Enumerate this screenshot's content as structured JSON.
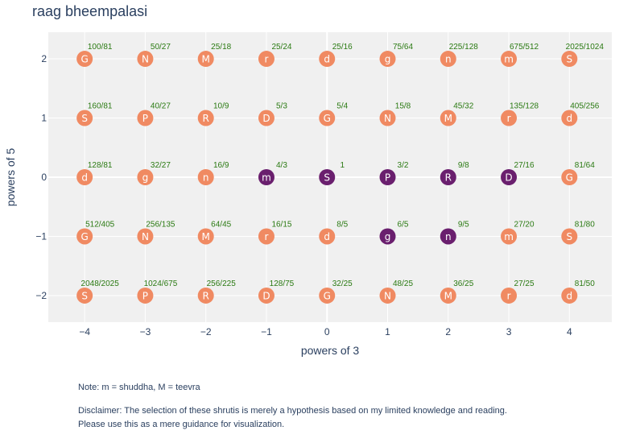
{
  "chart_data": {
    "type": "scatter",
    "title": "raag bheempalasi",
    "xlabel": "powers of 3",
    "ylabel": "powers of 5",
    "xlim": [
      -4.6,
      4.7
    ],
    "ylim": [
      -2.45,
      2.45
    ],
    "xticks": [
      -4,
      -3,
      -2,
      -1,
      0,
      1,
      2,
      3,
      4
    ],
    "xtick_labels": [
      "−4",
      "−3",
      "−2",
      "−1",
      "0",
      "1",
      "2",
      "3",
      "4"
    ],
    "yticks": [
      -2,
      -1,
      0,
      1,
      2
    ],
    "ytick_labels": [
      "−2",
      "−1",
      "0",
      "1",
      "2"
    ],
    "colors": {
      "normal": "#f08a62",
      "selected": "#6a1f6e",
      "ratio_text": "#2a7a12",
      "plot_bg": "#f0f0f0",
      "axis_text": "#2a3f5f"
    },
    "points": [
      {
        "x": -4,
        "y": 2,
        "swara": "G",
        "ratio": "100/81",
        "selected": false
      },
      {
        "x": -3,
        "y": 2,
        "swara": "N",
        "ratio": "50/27",
        "selected": false
      },
      {
        "x": -2,
        "y": 2,
        "swara": "M",
        "ratio": "25/18",
        "selected": false
      },
      {
        "x": -1,
        "y": 2,
        "swara": "r",
        "ratio": "25/24",
        "selected": false
      },
      {
        "x": 0,
        "y": 2,
        "swara": "d",
        "ratio": "25/16",
        "selected": false
      },
      {
        "x": 1,
        "y": 2,
        "swara": "g",
        "ratio": "75/64",
        "selected": false
      },
      {
        "x": 2,
        "y": 2,
        "swara": "n",
        "ratio": "225/128",
        "selected": false
      },
      {
        "x": 3,
        "y": 2,
        "swara": "m",
        "ratio": "675/512",
        "selected": false
      },
      {
        "x": 4,
        "y": 2,
        "swara": "S",
        "ratio": "2025/1024",
        "selected": false
      },
      {
        "x": -4,
        "y": 1,
        "swara": "S",
        "ratio": "160/81",
        "selected": false
      },
      {
        "x": -3,
        "y": 1,
        "swara": "P",
        "ratio": "40/27",
        "selected": false
      },
      {
        "x": -2,
        "y": 1,
        "swara": "R",
        "ratio": "10/9",
        "selected": false
      },
      {
        "x": -1,
        "y": 1,
        "swara": "D",
        "ratio": "5/3",
        "selected": false
      },
      {
        "x": 0,
        "y": 1,
        "swara": "G",
        "ratio": "5/4",
        "selected": false
      },
      {
        "x": 1,
        "y": 1,
        "swara": "N",
        "ratio": "15/8",
        "selected": false
      },
      {
        "x": 2,
        "y": 1,
        "swara": "M",
        "ratio": "45/32",
        "selected": false
      },
      {
        "x": 3,
        "y": 1,
        "swara": "r",
        "ratio": "135/128",
        "selected": false
      },
      {
        "x": 4,
        "y": 1,
        "swara": "d",
        "ratio": "405/256",
        "selected": false
      },
      {
        "x": -4,
        "y": 0,
        "swara": "d",
        "ratio": "128/81",
        "selected": false
      },
      {
        "x": -3,
        "y": 0,
        "swara": "g",
        "ratio": "32/27",
        "selected": false
      },
      {
        "x": -2,
        "y": 0,
        "swara": "n",
        "ratio": "16/9",
        "selected": false
      },
      {
        "x": -1,
        "y": 0,
        "swara": "m",
        "ratio": "4/3",
        "selected": true
      },
      {
        "x": 0,
        "y": 0,
        "swara": "S",
        "ratio": "1",
        "selected": true
      },
      {
        "x": 1,
        "y": 0,
        "swara": "P",
        "ratio": "3/2",
        "selected": true
      },
      {
        "x": 2,
        "y": 0,
        "swara": "R",
        "ratio": "9/8",
        "selected": true
      },
      {
        "x": 3,
        "y": 0,
        "swara": "D",
        "ratio": "27/16",
        "selected": true
      },
      {
        "x": 4,
        "y": 0,
        "swara": "G",
        "ratio": "81/64",
        "selected": false
      },
      {
        "x": -4,
        "y": -1,
        "swara": "G",
        "ratio": "512/405",
        "selected": false
      },
      {
        "x": -3,
        "y": -1,
        "swara": "N",
        "ratio": "256/135",
        "selected": false
      },
      {
        "x": -2,
        "y": -1,
        "swara": "M",
        "ratio": "64/45",
        "selected": false
      },
      {
        "x": -1,
        "y": -1,
        "swara": "r",
        "ratio": "16/15",
        "selected": false
      },
      {
        "x": 0,
        "y": -1,
        "swara": "d",
        "ratio": "8/5",
        "selected": false
      },
      {
        "x": 1,
        "y": -1,
        "swara": "g",
        "ratio": "6/5",
        "selected": true
      },
      {
        "x": 2,
        "y": -1,
        "swara": "n",
        "ratio": "9/5",
        "selected": true
      },
      {
        "x": 3,
        "y": -1,
        "swara": "m",
        "ratio": "27/20",
        "selected": false
      },
      {
        "x": 4,
        "y": -1,
        "swara": "S",
        "ratio": "81/80",
        "selected": false
      },
      {
        "x": -4,
        "y": -2,
        "swara": "S",
        "ratio": "2048/2025",
        "selected": false
      },
      {
        "x": -3,
        "y": -2,
        "swara": "P",
        "ratio": "1024/675",
        "selected": false
      },
      {
        "x": -2,
        "y": -2,
        "swara": "R",
        "ratio": "256/225",
        "selected": false
      },
      {
        "x": -1,
        "y": -2,
        "swara": "D",
        "ratio": "128/75",
        "selected": false
      },
      {
        "x": 0,
        "y": -2,
        "swara": "G",
        "ratio": "32/25",
        "selected": false
      },
      {
        "x": 1,
        "y": -2,
        "swara": "N",
        "ratio": "48/25",
        "selected": false
      },
      {
        "x": 2,
        "y": -2,
        "swara": "M",
        "ratio": "36/25",
        "selected": false
      },
      {
        "x": 3,
        "y": -2,
        "swara": "r",
        "ratio": "27/25",
        "selected": false
      },
      {
        "x": 4,
        "y": -2,
        "swara": "d",
        "ratio": "81/50",
        "selected": false
      }
    ]
  },
  "notes": {
    "note_line": "Note: m = shuddha, M = teevra",
    "disclaimer_line1": "Disclaimer: The selection of these shrutis is merely a hypothesis based on my limited knowledge and reading.",
    "disclaimer_line2": "Please use this as a mere guidance for visualization."
  }
}
